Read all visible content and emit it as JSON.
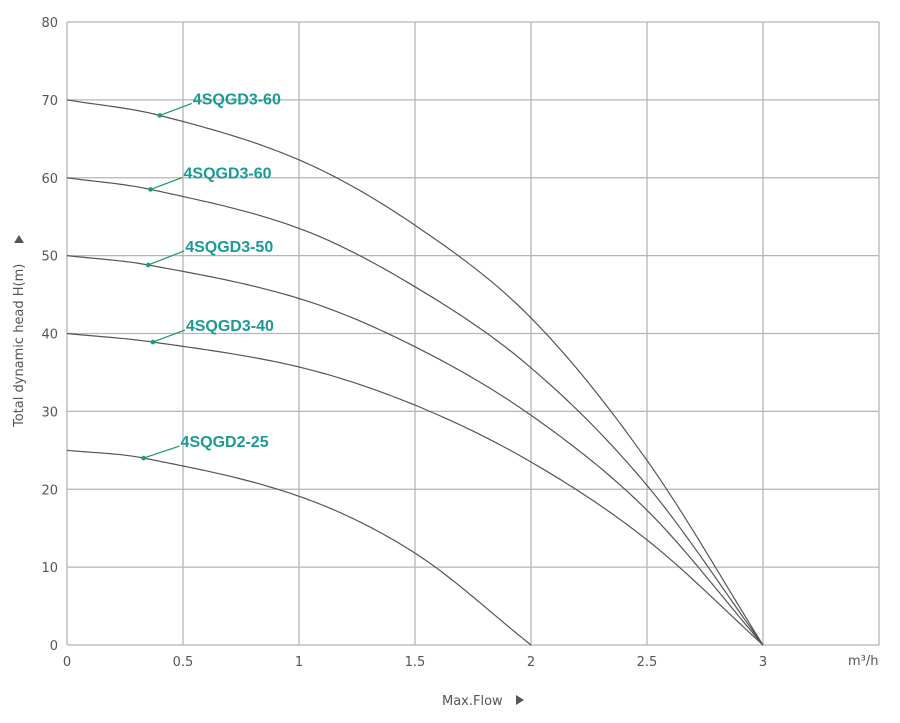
{
  "chart_data": {
    "type": "line",
    "title": "",
    "xlabel": "Max.Flow",
    "ylabel": "Total dynamic head H(m)",
    "x_unit": "m³/h",
    "xlim": [
      0,
      3.5
    ],
    "ylim": [
      0,
      80
    ],
    "xticks": [
      "0",
      "0.5",
      "1",
      "1.5",
      "2",
      "2.5",
      "3"
    ],
    "yticks": [
      "0",
      "10",
      "20",
      "30",
      "40",
      "50",
      "60",
      "70",
      "80"
    ],
    "grid": true,
    "legend": "inline labels",
    "colors": {
      "curve": "#555555",
      "label": "#1a9a96",
      "grid": "#b5b5b5"
    },
    "series": [
      {
        "name": "4SQGD3-60",
        "marker_x": 0.4,
        "x": [
          0,
          0.4,
          1,
          1.5,
          2,
          2.5,
          3
        ],
        "y": [
          70,
          68,
          62.3,
          53.9,
          42,
          23.7,
          0
        ]
      },
      {
        "name": "4SQGD3-60",
        "marker_x": 0.36,
        "x": [
          0,
          0.36,
          1,
          1.5,
          2,
          2.5,
          3
        ],
        "y": [
          60,
          58.5,
          53.5,
          46,
          35.6,
          20.5,
          0
        ]
      },
      {
        "name": "4SQGD3-50",
        "marker_x": 0.35,
        "x": [
          0,
          0.35,
          1,
          1.5,
          2,
          2.5,
          3
        ],
        "y": [
          50,
          48.8,
          44.5,
          38.3,
          29.5,
          17.3,
          0
        ]
      },
      {
        "name": "4SQGD3-40",
        "marker_x": 0.37,
        "x": [
          0,
          0.37,
          1,
          1.5,
          2,
          2.5,
          3
        ],
        "y": [
          40,
          38.9,
          35.7,
          30.8,
          23.5,
          13.5,
          0
        ]
      },
      {
        "name": "4SQGD2-25",
        "marker_x": 0.33,
        "x": [
          0,
          0.33,
          1,
          1.5,
          2
        ],
        "y": [
          25,
          24,
          19.1,
          11.8,
          0
        ]
      }
    ]
  }
}
